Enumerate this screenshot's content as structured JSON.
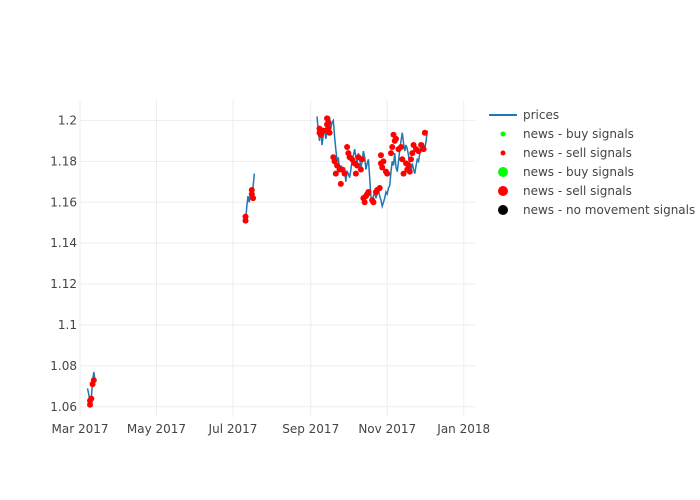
{
  "chart_data": {
    "type": "scatter",
    "title": "",
    "xlabel": "",
    "ylabel": "",
    "x_range": [
      "2017-03-01",
      "2018-01-10"
    ],
    "ylim": [
      1.055,
      1.21
    ],
    "x_ticks": [
      {
        "date": "2017-03-01",
        "label": "Mar 2017"
      },
      {
        "date": "2017-05-01",
        "label": "May 2017"
      },
      {
        "date": "2017-07-01",
        "label": "Jul 2017"
      },
      {
        "date": "2017-09-01",
        "label": "Sep 2017"
      },
      {
        "date": "2017-11-01",
        "label": "Nov 2017"
      },
      {
        "date": "2018-01-01",
        "label": "Jan 2018"
      }
    ],
    "y_ticks": [
      {
        "value": 1.06,
        "label": "1.06"
      },
      {
        "value": 1.08,
        "label": "1.08"
      },
      {
        "value": 1.1,
        "label": "1.1"
      },
      {
        "value": 1.12,
        "label": "1.12"
      },
      {
        "value": 1.14,
        "label": "1.14"
      },
      {
        "value": 1.16,
        "label": "1.16"
      },
      {
        "value": 1.18,
        "label": "1.18"
      },
      {
        "value": 1.2,
        "label": "1.2"
      }
    ],
    "grid": true,
    "legend_position": "right",
    "legend": [
      {
        "label": "prices",
        "kind": "line",
        "color": "#1f77b4"
      },
      {
        "label": "news - buy signals",
        "kind": "small-dot",
        "color": "#00ff00"
      },
      {
        "label": "news - sell signals",
        "kind": "small-dot",
        "color": "#ff0000"
      },
      {
        "label": "news - buy signals",
        "kind": "large-dot",
        "color": "#00ff00"
      },
      {
        "label": "news - sell signals",
        "kind": "large-dot",
        "color": "#ff0000"
      },
      {
        "label": "news - no movement signals",
        "kind": "large-dot",
        "color": "#000000"
      }
    ],
    "series": [
      {
        "name": "prices",
        "kind": "line",
        "color": "#1f77b4",
        "points": [
          [
            "2017-03-07",
            1.069
          ],
          [
            "2017-03-08",
            1.066
          ],
          [
            "2017-03-09",
            1.062
          ],
          [
            "2017-03-10",
            1.064
          ],
          [
            "2017-03-11",
            1.072
          ],
          [
            "2017-03-12",
            1.077
          ],
          [
            "2017-03-13",
            1.073
          ],
          [
            "2017-07-10",
            1.153
          ],
          [
            "2017-07-11",
            1.15
          ],
          [
            "2017-07-12",
            1.158
          ],
          [
            "2017-07-13",
            1.163
          ],
          [
            "2017-07-14",
            1.16
          ],
          [
            "2017-07-15",
            1.165
          ],
          [
            "2017-07-16",
            1.162
          ],
          [
            "2017-07-17",
            1.167
          ],
          [
            "2017-07-18",
            1.174
          ],
          [
            "2017-09-06",
            1.202
          ],
          [
            "2017-09-07",
            1.195
          ],
          [
            "2017-09-08",
            1.19
          ],
          [
            "2017-09-09",
            1.197
          ],
          [
            "2017-09-10",
            1.188
          ],
          [
            "2017-09-11",
            1.193
          ],
          [
            "2017-09-12",
            1.196
          ],
          [
            "2017-09-13",
            1.191
          ],
          [
            "2017-09-14",
            1.194
          ],
          [
            "2017-09-15",
            1.198
          ],
          [
            "2017-09-16",
            1.202
          ],
          [
            "2017-09-17",
            1.196
          ],
          [
            "2017-09-18",
            1.199
          ],
          [
            "2017-09-19",
            1.2
          ],
          [
            "2017-09-20",
            1.192
          ],
          [
            "2017-09-21",
            1.186
          ],
          [
            "2017-09-22",
            1.18
          ],
          [
            "2017-09-23",
            1.182
          ],
          [
            "2017-09-24",
            1.175
          ],
          [
            "2017-09-25",
            1.178
          ],
          [
            "2017-09-26",
            1.176
          ],
          [
            "2017-09-27",
            1.173
          ],
          [
            "2017-09-28",
            1.177
          ],
          [
            "2017-09-29",
            1.17
          ],
          [
            "2017-09-30",
            1.175
          ],
          [
            "2017-10-01",
            1.174
          ],
          [
            "2017-10-02",
            1.172
          ],
          [
            "2017-10-03",
            1.176
          ],
          [
            "2017-10-04",
            1.181
          ],
          [
            "2017-10-05",
            1.183
          ],
          [
            "2017-10-06",
            1.186
          ],
          [
            "2017-10-07",
            1.182
          ],
          [
            "2017-10-08",
            1.179
          ],
          [
            "2017-10-09",
            1.184
          ],
          [
            "2017-10-10",
            1.181
          ],
          [
            "2017-10-11",
            1.177
          ],
          [
            "2017-10-12",
            1.18
          ],
          [
            "2017-10-13",
            1.185
          ],
          [
            "2017-10-14",
            1.182
          ],
          [
            "2017-10-15",
            1.176
          ],
          [
            "2017-10-16",
            1.179
          ],
          [
            "2017-10-17",
            1.181
          ],
          [
            "2017-10-18",
            1.172
          ],
          [
            "2017-10-19",
            1.163
          ],
          [
            "2017-10-20",
            1.16
          ],
          [
            "2017-10-21",
            1.163
          ],
          [
            "2017-10-22",
            1.165
          ],
          [
            "2017-10-23",
            1.162
          ],
          [
            "2017-10-24",
            1.164
          ],
          [
            "2017-10-25",
            1.166
          ],
          [
            "2017-10-26",
            1.163
          ],
          [
            "2017-10-27",
            1.161
          ],
          [
            "2017-10-28",
            1.158
          ],
          [
            "2017-10-29",
            1.16
          ],
          [
            "2017-10-30",
            1.162
          ],
          [
            "2017-10-31",
            1.165
          ],
          [
            "2017-11-01",
            1.164
          ],
          [
            "2017-11-02",
            1.167
          ],
          [
            "2017-11-03",
            1.168
          ],
          [
            "2017-11-04",
            1.175
          ],
          [
            "2017-11-05",
            1.18
          ],
          [
            "2017-11-06",
            1.178
          ],
          [
            "2017-11-07",
            1.184
          ],
          [
            "2017-11-08",
            1.177
          ],
          [
            "2017-11-09",
            1.175
          ],
          [
            "2017-11-10",
            1.18
          ],
          [
            "2017-11-11",
            1.186
          ],
          [
            "2017-11-12",
            1.19
          ],
          [
            "2017-11-13",
            1.194
          ],
          [
            "2017-11-14",
            1.189
          ],
          [
            "2017-11-15",
            1.185
          ],
          [
            "2017-11-16",
            1.188
          ],
          [
            "2017-11-17",
            1.186
          ],
          [
            "2017-11-18",
            1.183
          ],
          [
            "2017-11-19",
            1.178
          ],
          [
            "2017-11-20",
            1.175
          ],
          [
            "2017-11-21",
            1.179
          ],
          [
            "2017-11-22",
            1.176
          ],
          [
            "2017-11-23",
            1.174
          ],
          [
            "2017-11-24",
            1.178
          ],
          [
            "2017-11-25",
            1.181
          ],
          [
            "2017-11-26",
            1.18
          ],
          [
            "2017-11-27",
            1.184
          ],
          [
            "2017-11-28",
            1.187
          ],
          [
            "2017-11-29",
            1.186
          ],
          [
            "2017-11-30",
            1.188
          ],
          [
            "2017-12-01",
            1.186
          ],
          [
            "2017-12-02",
            1.19
          ],
          [
            "2017-12-03",
            1.195
          ]
        ]
      },
      {
        "name": "news - sell signals",
        "kind": "markers",
        "color": "#ff0000",
        "points": [
          [
            "2017-03-09",
            1.063
          ],
          [
            "2017-03-09",
            1.061
          ],
          [
            "2017-03-10",
            1.064
          ],
          [
            "2017-03-11",
            1.071
          ],
          [
            "2017-03-12",
            1.073
          ],
          [
            "2017-07-11",
            1.151
          ],
          [
            "2017-07-11",
            1.153
          ],
          [
            "2017-07-16",
            1.164
          ],
          [
            "2017-07-16",
            1.166
          ],
          [
            "2017-07-17",
            1.162
          ],
          [
            "2017-09-08",
            1.196
          ],
          [
            "2017-09-08",
            1.194
          ],
          [
            "2017-09-09",
            1.193
          ],
          [
            "2017-09-11",
            1.195
          ],
          [
            "2017-09-13",
            1.195
          ],
          [
            "2017-09-14",
            1.201
          ],
          [
            "2017-09-14",
            1.198
          ],
          [
            "2017-09-15",
            1.196
          ],
          [
            "2017-09-15",
            1.199
          ],
          [
            "2017-09-16",
            1.194
          ],
          [
            "2017-09-19",
            1.182
          ],
          [
            "2017-09-20",
            1.18
          ],
          [
            "2017-09-21",
            1.174
          ],
          [
            "2017-09-22",
            1.178
          ],
          [
            "2017-09-24",
            1.176
          ],
          [
            "2017-09-25",
            1.169
          ],
          [
            "2017-09-26",
            1.176
          ],
          [
            "2017-09-28",
            1.174
          ],
          [
            "2017-09-30",
            1.187
          ],
          [
            "2017-10-01",
            1.184
          ],
          [
            "2017-10-02",
            1.182
          ],
          [
            "2017-10-04",
            1.181
          ],
          [
            "2017-10-06",
            1.179
          ],
          [
            "2017-10-07",
            1.174
          ],
          [
            "2017-10-08",
            1.178
          ],
          [
            "2017-10-09",
            1.182
          ],
          [
            "2017-10-11",
            1.176
          ],
          [
            "2017-10-12",
            1.181
          ],
          [
            "2017-10-13",
            1.162
          ],
          [
            "2017-10-14",
            1.16
          ],
          [
            "2017-10-15",
            1.163
          ],
          [
            "2017-10-16",
            1.164
          ],
          [
            "2017-10-17",
            1.165
          ],
          [
            "2017-10-20",
            1.161
          ],
          [
            "2017-10-21",
            1.16
          ],
          [
            "2017-10-23",
            1.165
          ],
          [
            "2017-10-24",
            1.166
          ],
          [
            "2017-10-26",
            1.167
          ],
          [
            "2017-10-27",
            1.183
          ],
          [
            "2017-10-27",
            1.179
          ],
          [
            "2017-10-28",
            1.177
          ],
          [
            "2017-10-29",
            1.18
          ],
          [
            "2017-10-31",
            1.175
          ],
          [
            "2017-11-01",
            1.174
          ],
          [
            "2017-11-04",
            1.184
          ],
          [
            "2017-11-05",
            1.187
          ],
          [
            "2017-11-06",
            1.193
          ],
          [
            "2017-11-07",
            1.19
          ],
          [
            "2017-11-08",
            1.191
          ],
          [
            "2017-11-10",
            1.186
          ],
          [
            "2017-11-12",
            1.187
          ],
          [
            "2017-11-13",
            1.181
          ],
          [
            "2017-11-14",
            1.174
          ],
          [
            "2017-11-16",
            1.179
          ],
          [
            "2017-11-17",
            1.176
          ],
          [
            "2017-11-18",
            1.178
          ],
          [
            "2017-11-19",
            1.175
          ],
          [
            "2017-11-20",
            1.181
          ],
          [
            "2017-11-21",
            1.184
          ],
          [
            "2017-11-22",
            1.188
          ],
          [
            "2017-11-24",
            1.186
          ],
          [
            "2017-11-26",
            1.185
          ],
          [
            "2017-11-28",
            1.188
          ],
          [
            "2017-11-30",
            1.186
          ],
          [
            "2017-12-01",
            1.194
          ]
        ]
      }
    ]
  }
}
